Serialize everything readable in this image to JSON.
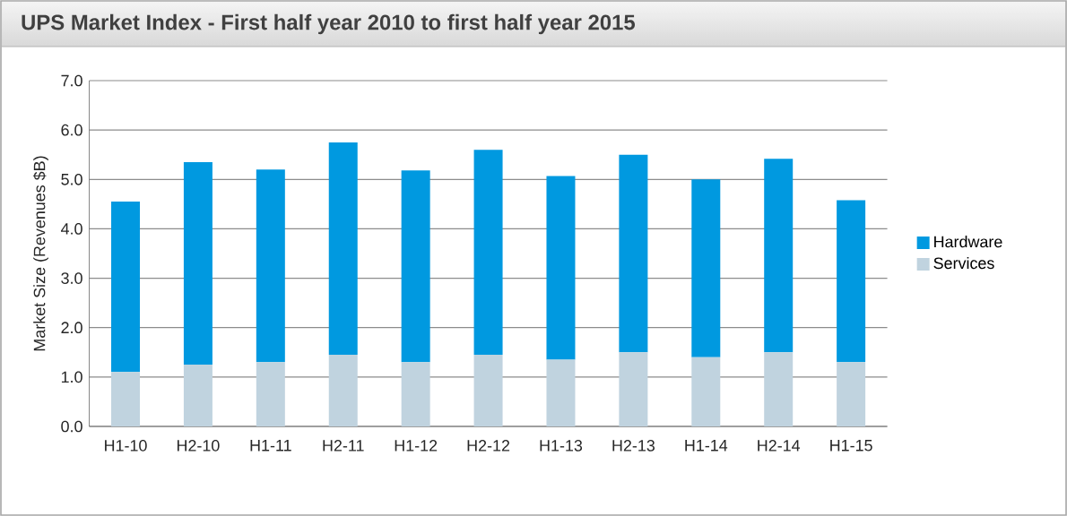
{
  "chart_data": {
    "type": "bar",
    "title": "UPS Market Index - First half year 2010 to first half year 2015",
    "ylabel": "Market Size (Revenues $B)",
    "categories": [
      "H1-10",
      "H2-10",
      "H1-11",
      "H2-11",
      "H1-12",
      "H2-12",
      "H1-13",
      "H2-13",
      "H1-14",
      "H2-14",
      "H1-15"
    ],
    "stacked": true,
    "series": [
      {
        "name": "Services",
        "color": "#c0d3df",
        "values": [
          1.1,
          1.25,
          1.3,
          1.45,
          1.3,
          1.45,
          1.35,
          1.5,
          1.4,
          1.5,
          1.3
        ]
      },
      {
        "name": "Hardware",
        "color": "#0099e0",
        "values": [
          3.45,
          4.1,
          3.9,
          4.3,
          3.88,
          4.15,
          3.72,
          4.0,
          3.6,
          3.92,
          3.28
        ]
      }
    ],
    "ylim": [
      0,
      7
    ],
    "yticks": [
      {
        "value": 0,
        "label": "0.0"
      },
      {
        "value": 1,
        "label": "1.0"
      },
      {
        "value": 2,
        "label": "2.0"
      },
      {
        "value": 3,
        "label": "3.0"
      },
      {
        "value": 4,
        "label": "4.0"
      },
      {
        "value": 5,
        "label": "5.0"
      },
      {
        "value": 6,
        "label": "6.0"
      },
      {
        "value": 7,
        "label": "7.0"
      }
    ],
    "grid": "y",
    "legend": "right"
  }
}
